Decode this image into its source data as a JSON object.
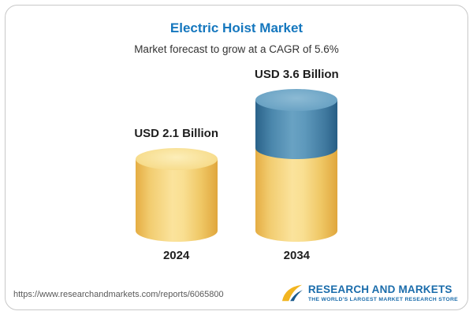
{
  "card": {
    "title": "Electric Hoist Market",
    "subtitle": "Market forecast to grow at a CAGR of 5.6%"
  },
  "chart_data": {
    "type": "bar",
    "title": "Electric Hoist Market",
    "subtitle": "Market forecast to grow at a CAGR of 5.6%",
    "categories": [
      "2024",
      "2034"
    ],
    "values": [
      2.1,
      3.6
    ],
    "value_labels": [
      "USD 2.1 Billion",
      "USD 3.6 Billion"
    ],
    "unit": "USD Billion",
    "cagr": "5.6%",
    "legend_position": "none",
    "grid": false,
    "colors": {
      "bar_base": "#f2cd71",
      "bar_growth_top": "#4b87ac",
      "title_accent": "#1577be"
    }
  },
  "footer": {
    "url": "https://www.researchandmarkets.com/reports/6065800",
    "logo_text": "RESEARCH AND MARKETS",
    "logo_tagline": "THE WORLD'S LARGEST MARKET RESEARCH STORE"
  }
}
